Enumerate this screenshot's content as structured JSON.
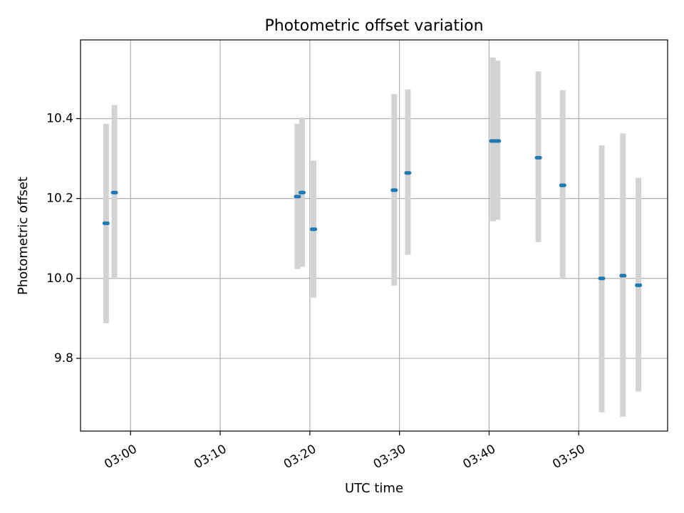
{
  "chart_data": {
    "type": "scatter",
    "title": "Photometric offset variation",
    "xlabel": "UTC time",
    "ylabel": "Photometric offset",
    "xlim": [
      "02:54:25",
      "03:59:55"
    ],
    "ylim": [
      9.618,
      10.597
    ],
    "grid": true,
    "x_ticks": [
      "03:00",
      "03:10",
      "03:20",
      "03:30",
      "03:40",
      "03:50"
    ],
    "y_ticks": [
      9.8,
      10.0,
      10.2,
      10.4
    ],
    "error_color": "#d3d3d3",
    "point_color": "#1f77b4",
    "points": [
      {
        "x": "02:57:16",
        "y": 10.138,
        "y_low": 9.888,
        "y_high": 10.387
      },
      {
        "x": "02:58:12",
        "y": 10.215,
        "y_low": 9.998,
        "y_high": 10.434
      },
      {
        "x": "03:18:37",
        "y": 10.205,
        "y_low": 10.024,
        "y_high": 10.387
      },
      {
        "x": "03:19:08",
        "y": 10.215,
        "y_low": 10.029,
        "y_high": 10.403
      },
      {
        "x": "03:20:25",
        "y": 10.123,
        "y_low": 9.952,
        "y_high": 10.295
      },
      {
        "x": "03:29:25",
        "y": 10.221,
        "y_low": 9.982,
        "y_high": 10.461
      },
      {
        "x": "03:30:56",
        "y": 10.264,
        "y_low": 10.059,
        "y_high": 10.473
      },
      {
        "x": "03:40:25",
        "y": 10.344,
        "y_low": 10.143,
        "y_high": 10.553
      },
      {
        "x": "03:40:56",
        "y": 10.344,
        "y_low": 10.147,
        "y_high": 10.545
      },
      {
        "x": "03:45:30",
        "y": 10.302,
        "y_low": 10.091,
        "y_high": 10.518
      },
      {
        "x": "03:48:13",
        "y": 10.233,
        "y_low": 9.998,
        "y_high": 10.471
      },
      {
        "x": "03:52:34",
        "y": 10.0,
        "y_low": 9.665,
        "y_high": 10.333
      },
      {
        "x": "03:54:56",
        "y": 10.007,
        "y_low": 9.654,
        "y_high": 10.363
      },
      {
        "x": "03:56:40",
        "y": 9.983,
        "y_low": 9.717,
        "y_high": 10.252
      }
    ]
  }
}
